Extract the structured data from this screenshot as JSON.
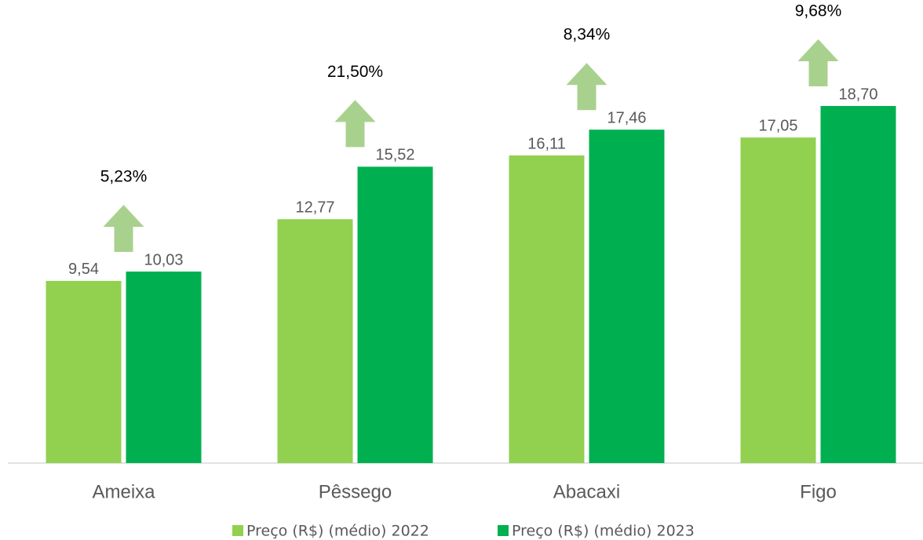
{
  "chart_data": {
    "type": "bar",
    "categories": [
      "Ameixa",
      "Pêssego",
      "Abacaxi",
      "Figo"
    ],
    "series": [
      {
        "name": "Preço (R$)  (médio) 2022",
        "color": "#92d050",
        "values": [
          9.54,
          12.77,
          16.11,
          17.05
        ],
        "value_labels": [
          "9,54",
          "12,77",
          "16,11",
          "17,05"
        ]
      },
      {
        "name": "Preço (R$) (médio) 2023",
        "color": "#00b050",
        "values": [
          10.03,
          15.52,
          17.46,
          18.7
        ],
        "value_labels": [
          "10,03",
          "15,52",
          "17,46",
          "18,70"
        ]
      }
    ],
    "annotations": [
      "5,23%",
      "21,50%",
      "8,34%",
      "9,68%"
    ],
    "ylim": [
      0,
      20
    ],
    "legend": "bottom"
  }
}
